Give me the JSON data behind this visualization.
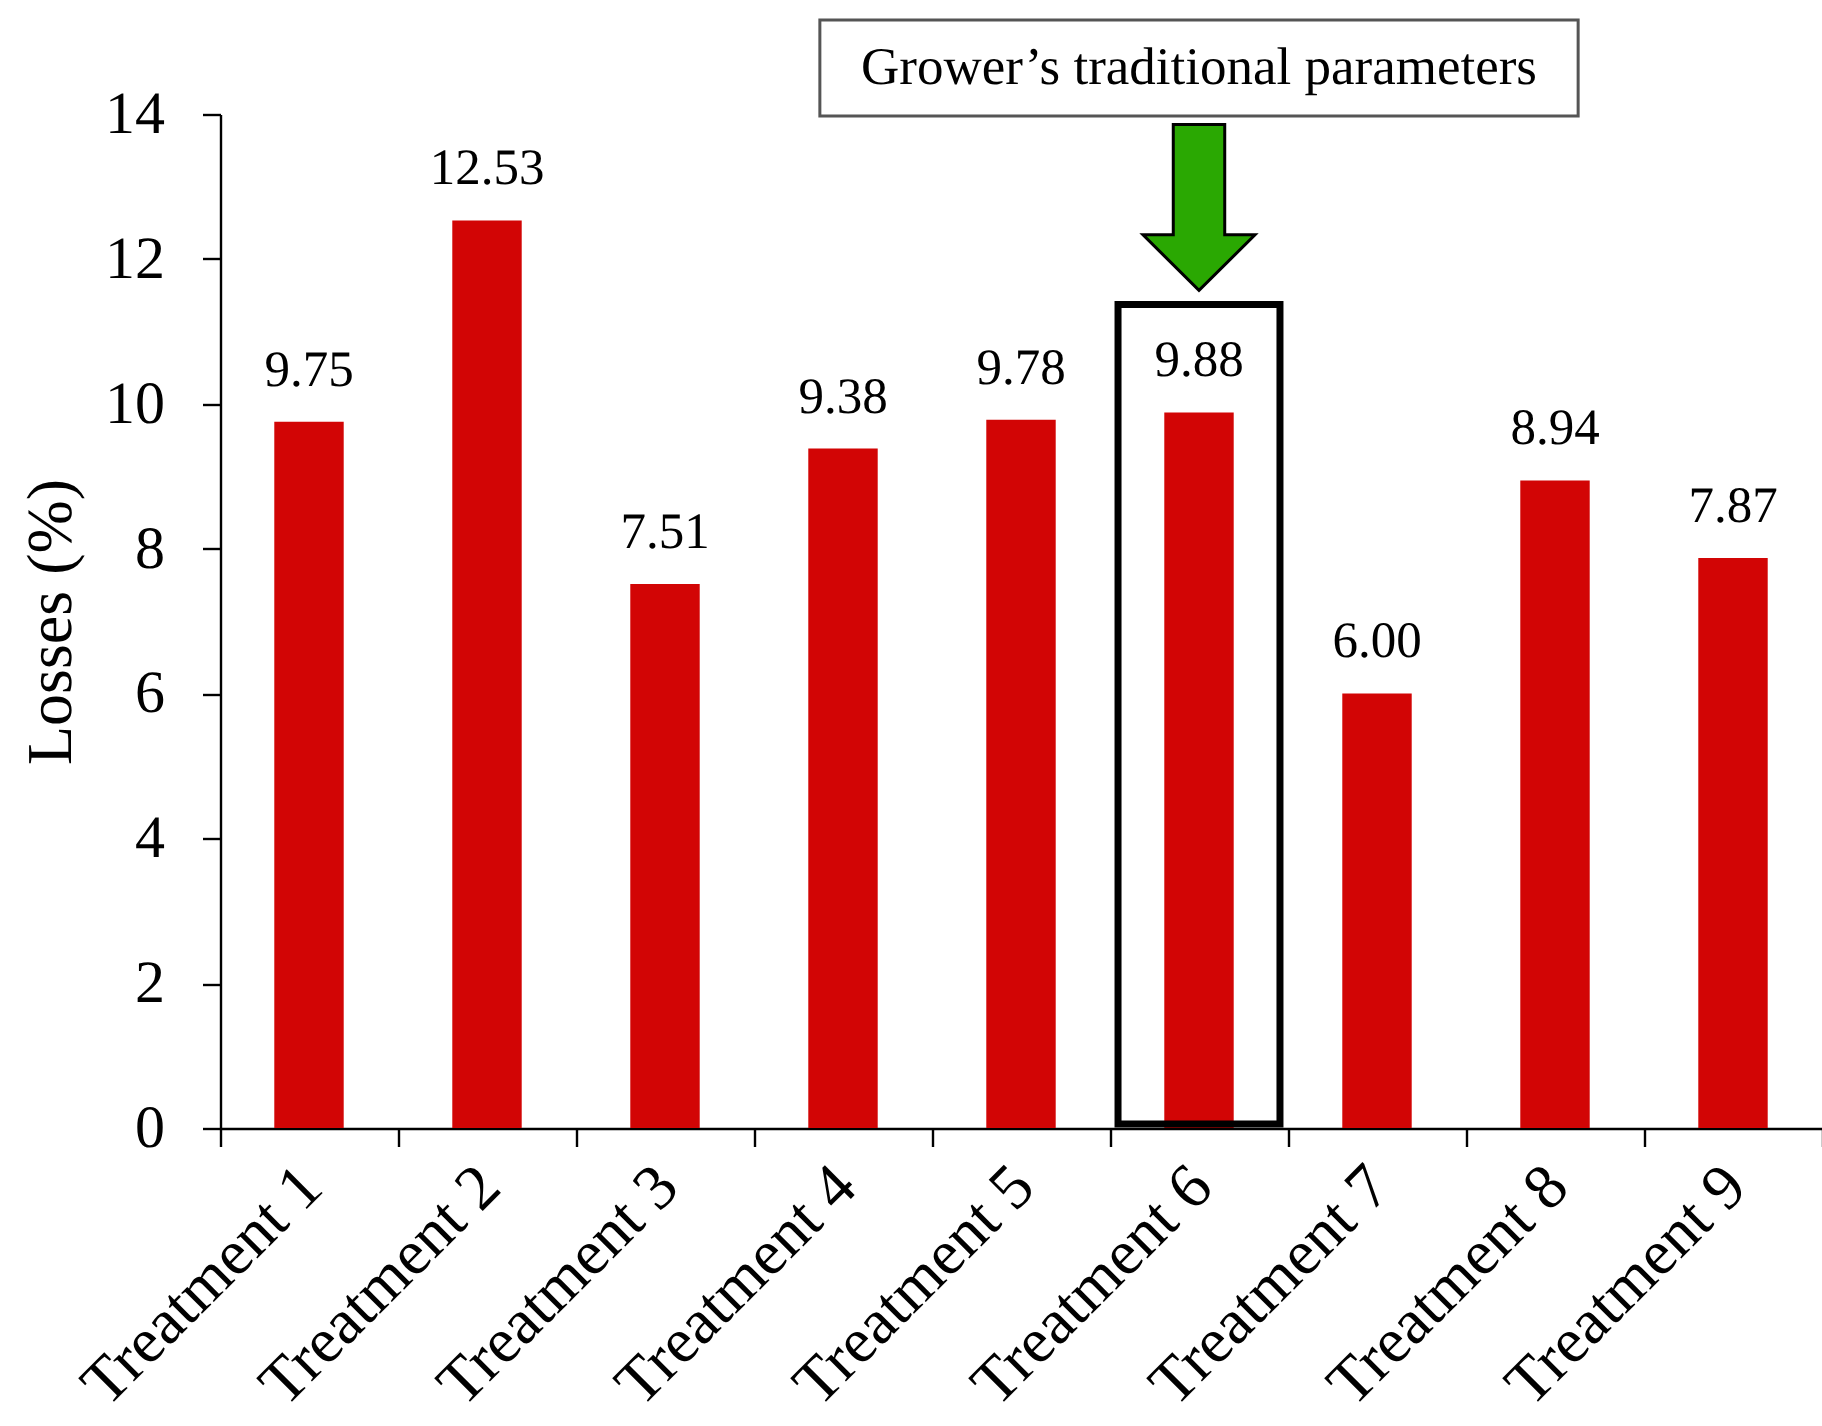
{
  "chart_data": {
    "type": "bar",
    "categories": [
      "Treatment 1",
      "Treatment 2",
      "Treatment 3",
      "Treatment 4",
      "Treatment 5",
      "Treatment 6",
      "Treatment 7",
      "Treatment 8",
      "Treatment 9"
    ],
    "values": [
      9.75,
      12.53,
      7.51,
      9.38,
      9.78,
      9.88,
      6.0,
      8.94,
      7.87
    ],
    "value_labels": [
      "9.75",
      "12.53",
      "7.51",
      "9.38",
      "9.78",
      "9.88",
      "6.00",
      "8.94",
      "7.87"
    ],
    "color": "#d20505",
    "ylabel": "Losses (%)",
    "ylim": [
      0,
      14
    ],
    "yticks": [
      0,
      2,
      4,
      6,
      8,
      10,
      12,
      14
    ],
    "annotations": [
      "Grower’s traditional parameters"
    ]
  }
}
